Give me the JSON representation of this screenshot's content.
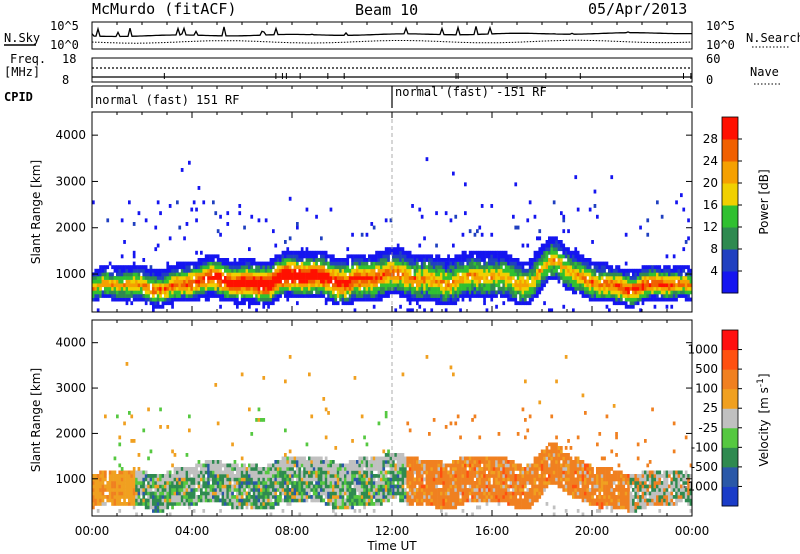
{
  "header": {
    "station": "McMurdo (fitACF)",
    "beam": "Beam 10",
    "date": "05/Apr/2013"
  },
  "noise_panel": {
    "left_label": "N.Sky",
    "right_label": "N.Search",
    "left_ticks": [
      "10^5",
      "10^0"
    ],
    "right_ticks": [
      "10^5",
      "10^0"
    ]
  },
  "freq_panel": {
    "left_label_top": "Freq.",
    "left_label_unit": "[MHz]",
    "left_ticks": [
      "18",
      "8"
    ],
    "right_label": "Nave",
    "right_ticks": [
      "60",
      "0"
    ]
  },
  "cpid_panel": {
    "label": "CPID",
    "segments": [
      {
        "text": "normal (fast) 151 RF",
        "start_hour": 0
      },
      {
        "text": "normal (fast) -151 RF",
        "start_hour": 12
      }
    ]
  },
  "chart_data": [
    {
      "type": "heatmap",
      "parameter": "Power",
      "ylabel": "Slant Range [km]",
      "xlabel": "Time UT",
      "x_range_hours": [
        0,
        24
      ],
      "ylim": [
        180,
        4500
      ],
      "y_ticks": [
        1000,
        2000,
        3000,
        4000
      ],
      "x_ticks": [
        "00:00",
        "04:00",
        "08:00",
        "12:00",
        "16:00",
        "20:00",
        "00:00"
      ],
      "colorbar": {
        "label": "Power [dB]",
        "ticks": [
          "4",
          "8",
          "12",
          "16",
          "20",
          "24",
          "28"
        ],
        "colors": [
          "#1515f0",
          "#2040c0",
          "#2f8a50",
          "#30c030",
          "#f0d000",
          "#f5a000",
          "#f06000",
          "#ff1000"
        ]
      }
    },
    {
      "type": "heatmap",
      "parameter": "Velocity",
      "ylabel": "Slant Range [km]",
      "xlabel": "Time UT",
      "x_range_hours": [
        0,
        24
      ],
      "ylim": [
        180,
        4500
      ],
      "y_ticks": [
        1000,
        2000,
        3000,
        4000
      ],
      "x_ticks": [
        "00:00",
        "04:00",
        "08:00",
        "12:00",
        "16:00",
        "20:00",
        "00:00"
      ],
      "colorbar": {
        "label": "Velocity",
        "unit_text": "[m s",
        "unit_exp": "-1",
        "unit_close": "]",
        "ticks": [
          "1000",
          "500",
          "100",
          "25",
          "-25",
          "-100",
          "-500",
          "-1000"
        ],
        "colors": [
          "#1a3cc8",
          "#2a58a8",
          "#2f8a50",
          "#55c840",
          "#c0c0c0",
          "#f0a020",
          "#f08020",
          "#ff5010",
          "#ff1010"
        ]
      }
    }
  ]
}
